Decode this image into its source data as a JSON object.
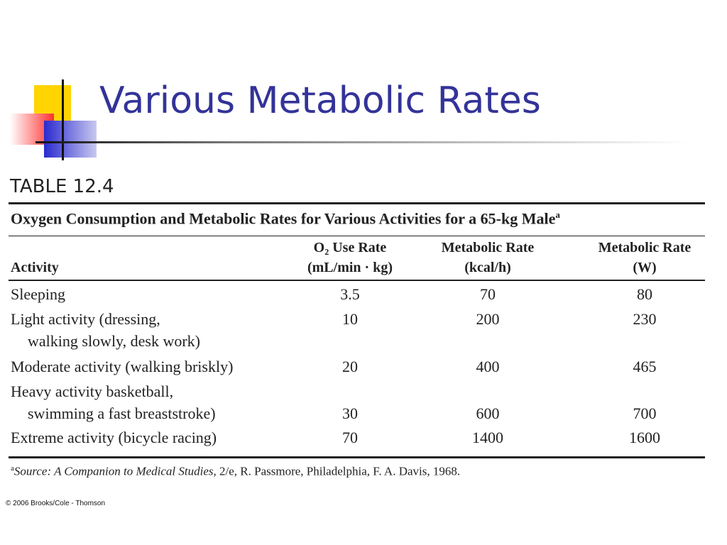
{
  "title": "Various Metabolic Rates",
  "table": {
    "label": "TABLE 12.4",
    "caption": "Oxygen Consumption and Metabolic Rates for Various Activities for a 65-kg Male",
    "caption_note": "a",
    "headers": [
      [
        "Activity"
      ],
      [
        "O₂ Use Rate",
        "(mL/min · kg)"
      ],
      [
        "Metabolic Rate",
        "(kcal/h)"
      ],
      [
        "Metabolic Rate",
        "(W)"
      ]
    ],
    "rows": [
      [
        [
          "Sleeping"
        ],
        3.5,
        70,
        80
      ],
      [
        [
          "Light activity (dressing,",
          "walking slowly, desk work)"
        ],
        10,
        200,
        230
      ],
      [
        [
          "Moderate activity (walking briskly)"
        ],
        20,
        400,
        465
      ],
      [
        [
          "Heavy activity basketball,",
          "swimming a fast breaststroke)"
        ],
        30,
        600,
        700
      ],
      [
        [
          "Extreme activity (bicycle racing)"
        ],
        70,
        1400,
        1600
      ]
    ],
    "footnote": {
      "mark": "a",
      "source": "Source: A Companion to Medical Studies",
      "rest": ", 2/e, R. Passmore, Philadelphia, F. A. Davis, 1968."
    }
  },
  "copyright": "© 2006 Brooks/Cole - Thomson"
}
